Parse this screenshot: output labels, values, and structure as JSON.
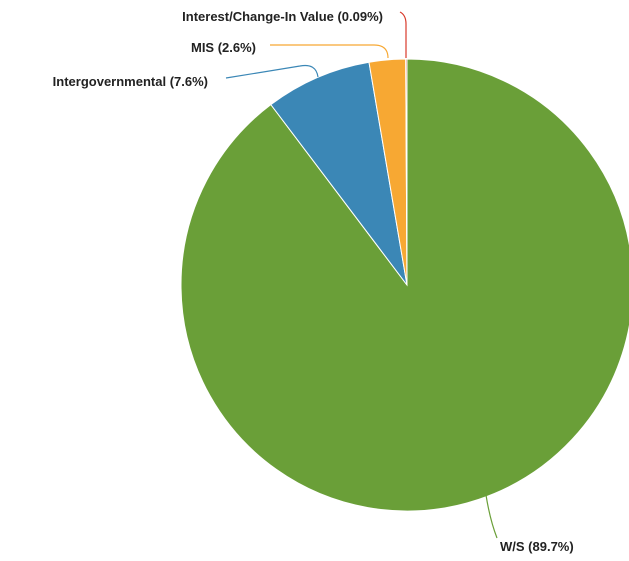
{
  "chart_data": {
    "type": "pie",
    "start_angle_deg": 0,
    "direction": "clockwise",
    "slices": [
      {
        "label": "W/S (89.7%)",
        "name": "W/S",
        "value": 89.7,
        "color": "#6a9f38"
      },
      {
        "label": "Intergovernmental (7.6%)",
        "name": "Intergovernmental",
        "value": 7.6,
        "color": "#3b87b6"
      },
      {
        "label": "MIS (2.6%)",
        "name": "MIS",
        "value": 2.6,
        "color": "#f7a833"
      },
      {
        "label": "Interest/Change-In Value (0.09%)",
        "name": "Interest/Change-In Value",
        "value": 0.09,
        "color": "#d83a2b"
      }
    ]
  }
}
